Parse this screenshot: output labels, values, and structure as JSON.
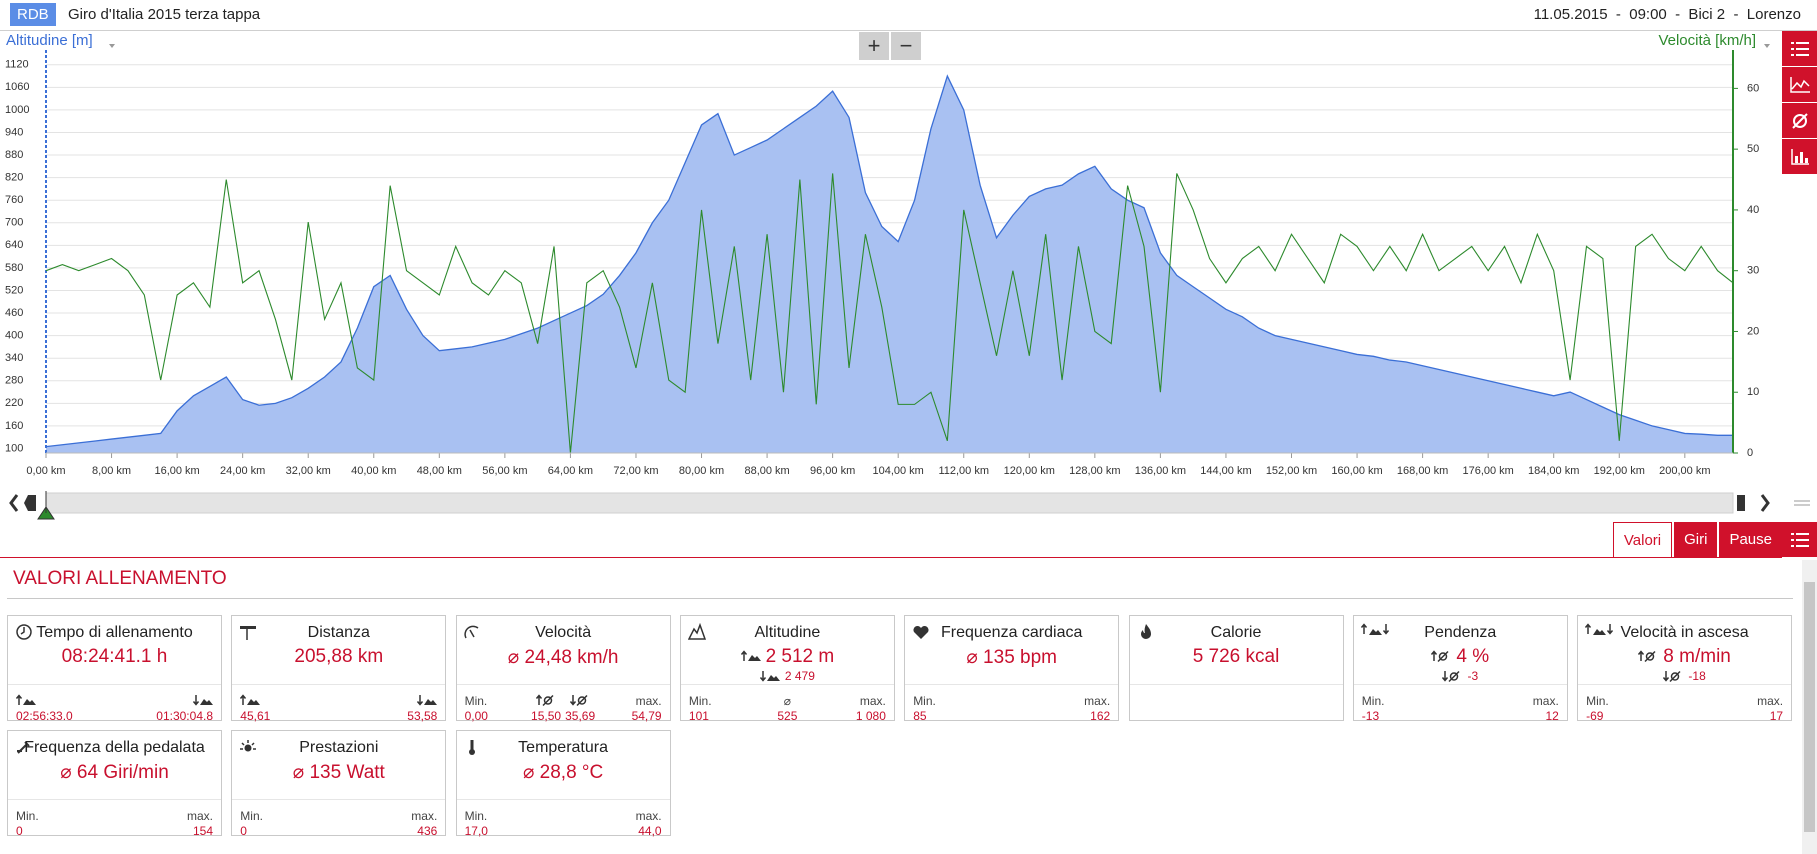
{
  "header": {
    "logo": "RDB",
    "title": "Giro d'Italia 2015 terza tappa",
    "info": "11.05.2015  -  09:00  -  Bici 2  -  Lorenzo"
  },
  "zoom": [
    "+",
    "−"
  ],
  "chart_data": {
    "type": "line",
    "x": [
      0,
      2,
      4,
      6,
      8,
      10,
      12,
      14,
      16,
      18,
      20,
      22,
      24,
      26,
      28,
      30,
      32,
      34,
      36,
      38,
      40,
      42,
      44,
      46,
      48,
      50,
      52,
      54,
      56,
      58,
      60,
      62,
      64,
      66,
      68,
      70,
      72,
      74,
      76,
      78,
      80,
      82,
      84,
      86,
      88,
      90,
      92,
      94,
      96,
      98,
      100,
      102,
      104,
      106,
      108,
      110,
      112,
      114,
      116,
      118,
      120,
      122,
      124,
      126,
      128,
      130,
      132,
      134,
      136,
      138,
      140,
      142,
      144,
      146,
      148,
      150,
      152,
      154,
      156,
      158,
      160,
      162,
      164,
      166,
      168,
      170,
      172,
      174,
      176,
      178,
      180,
      182,
      184,
      186,
      188,
      190,
      192,
      194,
      196,
      198,
      200,
      202,
      204,
      205.88
    ],
    "xlim": [
      0,
      205.88
    ],
    "xticks": [
      {
        "value": 0,
        "label": "0,00 km"
      },
      {
        "value": 8,
        "label": "8,00 km"
      },
      {
        "value": 16,
        "label": "16,00 km"
      },
      {
        "value": 24,
        "label": "24,00 km"
      },
      {
        "value": 32,
        "label": "32,00 km"
      },
      {
        "value": 40,
        "label": "40,00 km"
      },
      {
        "value": 48,
        "label": "48,00 km"
      },
      {
        "value": 56,
        "label": "56,00 km"
      },
      {
        "value": 64,
        "label": "64,00 km"
      },
      {
        "value": 72,
        "label": "72,00 km"
      },
      {
        "value": 80,
        "label": "80,00 km"
      },
      {
        "value": 88,
        "label": "88,00 km"
      },
      {
        "value": 96,
        "label": "96,00 km"
      },
      {
        "value": 104,
        "label": "104,00 km"
      },
      {
        "value": 112,
        "label": "112,00 km"
      },
      {
        "value": 120,
        "label": "120,00 km"
      },
      {
        "value": 128,
        "label": "128,00 km"
      },
      {
        "value": 136,
        "label": "136,00 km"
      },
      {
        "value": 144,
        "label": "144,00 km"
      },
      {
        "value": 152,
        "label": "152,00 km"
      },
      {
        "value": 160,
        "label": "160,00 km"
      },
      {
        "value": 168,
        "label": "168,00 km"
      },
      {
        "value": 176,
        "label": "176,00 km"
      },
      {
        "value": 184,
        "label": "184,00 km"
      },
      {
        "value": 192,
        "label": "192,00 km"
      },
      {
        "value": 200,
        "label": "200,00 km"
      }
    ],
    "ylim": [
      88,
      1138
    ],
    "yticks": [
      100,
      160,
      220,
      280,
      340,
      400,
      460,
      520,
      580,
      640,
      700,
      760,
      820,
      880,
      940,
      1000,
      1060,
      1120
    ],
    "y2lim": [
      0,
      65
    ],
    "y2ticks": [
      0,
      10,
      20,
      30,
      40,
      50,
      60
    ],
    "grid": true,
    "series": [
      {
        "name": "Altitudine [m]",
        "kind": "area",
        "color": "#3b6fd6",
        "fill": "#a9c1f2",
        "values": [
          105,
          110,
          115,
          120,
          125,
          130,
          135,
          140,
          200,
          240,
          265,
          290,
          230,
          215,
          220,
          235,
          260,
          290,
          330,
          420,
          530,
          560,
          470,
          400,
          360,
          365,
          370,
          380,
          390,
          405,
          420,
          440,
          460,
          480,
          510,
          560,
          620,
          700,
          760,
          860,
          960,
          990,
          880,
          900,
          920,
          950,
          980,
          1010,
          1050,
          980,
          780,
          690,
          650,
          760,
          950,
          1090,
          1000,
          800,
          660,
          720,
          770,
          790,
          800,
          830,
          850,
          790,
          760,
          740,
          620,
          560,
          530,
          500,
          470,
          450,
          420,
          400,
          390,
          380,
          370,
          360,
          350,
          345,
          335,
          330,
          320,
          310,
          300,
          290,
          280,
          270,
          260,
          250,
          240,
          250,
          230,
          210,
          190,
          175,
          160,
          150,
          140,
          138,
          135,
          135
        ]
      },
      {
        "name": "Velocità [km/h]",
        "kind": "line",
        "axis": "y2",
        "color": "#2d8a2d",
        "values": [
          30,
          31,
          30,
          31,
          32,
          30,
          26,
          12,
          26,
          28,
          24,
          45,
          28,
          30,
          22,
          12,
          38,
          22,
          28,
          14,
          12,
          44,
          30,
          28,
          26,
          34,
          28,
          26,
          30,
          28,
          18,
          34,
          0,
          28,
          30,
          24,
          14,
          28,
          12,
          10,
          40,
          18,
          34,
          12,
          36,
          10,
          45,
          8,
          46,
          14,
          36,
          24,
          8,
          8,
          10,
          2,
          40,
          28,
          16,
          30,
          16,
          36,
          12,
          34,
          20,
          18,
          44,
          34,
          10,
          46,
          40,
          32,
          28,
          32,
          34,
          30,
          36,
          32,
          28,
          36,
          34,
          30,
          34,
          30,
          36,
          30,
          32,
          34,
          30,
          34,
          28,
          36,
          30,
          12,
          34,
          32,
          2,
          34,
          36,
          32,
          30,
          34,
          30,
          28
        ]
      }
    ]
  },
  "tabs": [
    "Valori",
    "Giri",
    "Pause"
  ],
  "active_tab": 0,
  "panel": {
    "title": "VALORI ALLENAMENTO",
    "cards": [
      {
        "title": "Tempo di allenamento",
        "icon": "clock",
        "values": [
          "08:24:41.1 h"
        ],
        "footer_icons": [
          "up",
          "down"
        ],
        "footer_values": [
          "02:56:33.0",
          "01:30:04.8"
        ]
      },
      {
        "title": "Distanza",
        "icon": "sign",
        "values": [
          "205,88 km"
        ],
        "footer_icons": [
          "up",
          "down"
        ],
        "footer_values": [
          "45,61",
          "53,58"
        ]
      },
      {
        "title": "Velocità",
        "icon": "gauge",
        "values": [
          "⌀ 24,48 km/h"
        ],
        "footer_labels": [
          "Min.",
          null,
          null,
          "max."
        ],
        "footer_icons": [
          null,
          "up-avg",
          "down-avg",
          null
        ],
        "footer_values": [
          "0,00",
          "15,50",
          "35,69",
          "54,79"
        ]
      },
      {
        "title": "Altitudine",
        "icon": "mountain",
        "values": [
          "2 512 m",
          "2 479"
        ],
        "value_icons": [
          "up",
          "down"
        ],
        "footer_labels": [
          "Min.",
          "⌀",
          "max."
        ],
        "footer_values": [
          "101",
          "525",
          "1 080"
        ]
      },
      {
        "title": "Frequenza cardiaca",
        "icon": "heart",
        "values": [
          "⌀ 135 bpm"
        ],
        "footer_labels": [
          "Min.",
          "max."
        ],
        "footer_values": [
          "85",
          "162"
        ]
      },
      {
        "title": "Calorie",
        "icon": "flame",
        "values": [
          "5 726 kcal"
        ]
      },
      {
        "title": "Pendenza",
        "icon": "updown",
        "values": [
          "4 %",
          "-3"
        ],
        "value_icons": [
          "up-avg",
          "down-avg"
        ],
        "footer_labels": [
          "Min.",
          "max."
        ],
        "footer_values": [
          "-13",
          "12"
        ]
      },
      {
        "title": "Velocità in ascesa",
        "icon": "updown",
        "values": [
          "8 m/min",
          "-18"
        ],
        "value_icons": [
          "up-avg",
          "down-avg"
        ],
        "footer_labels": [
          "Min.",
          "max."
        ],
        "footer_values": [
          "-69",
          "17"
        ]
      },
      {
        "title": "Frequenza della pedalata",
        "icon": "pedal",
        "values": [
          "⌀ 64 Giri/min"
        ],
        "footer_labels": [
          "Min.",
          "max."
        ],
        "footer_values": [
          "0",
          "154"
        ]
      },
      {
        "title": "Prestazioni",
        "icon": "sun",
        "values": [
          "⌀ 135 Watt"
        ],
        "footer_labels": [
          "Min.",
          "max."
        ],
        "footer_values": [
          "0",
          "436"
        ]
      },
      {
        "title": "Temperatura",
        "icon": "thermo",
        "values": [
          "⌀ 28,8 °C"
        ],
        "footer_labels": [
          "Min.",
          "max."
        ],
        "footer_values": [
          "17,0",
          "44,0"
        ]
      }
    ]
  }
}
